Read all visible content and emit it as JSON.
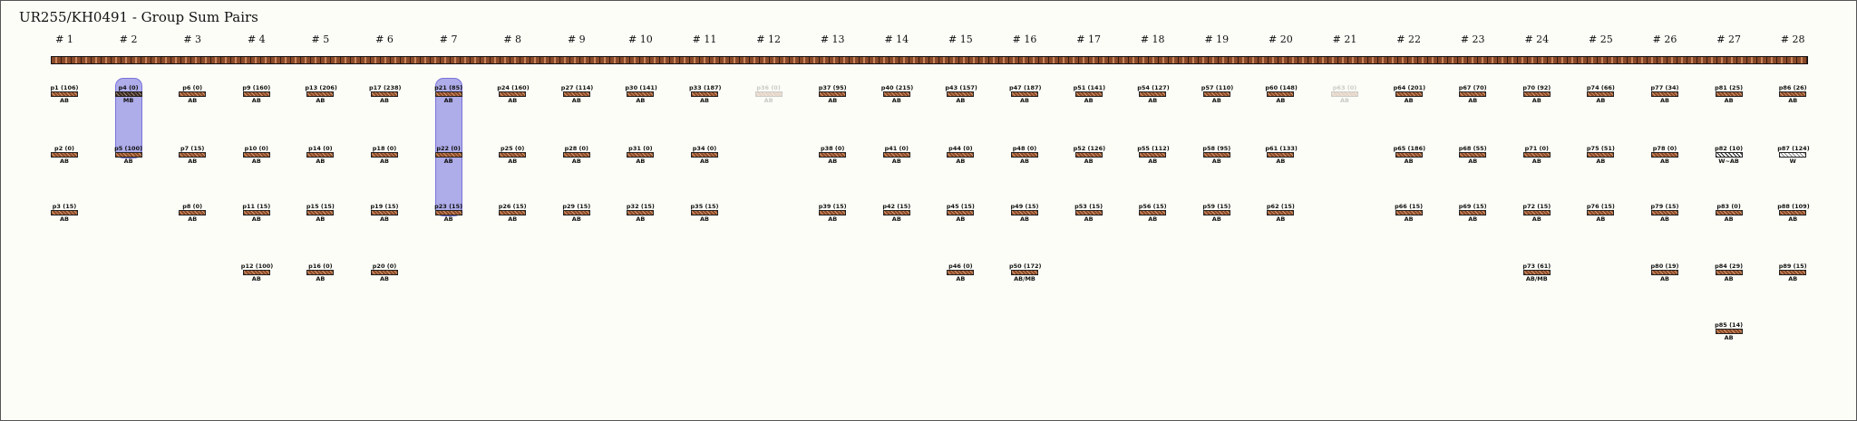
{
  "title": "UR255/KH0491 - Group Sum Pairs",
  "columns": [
    "# 1",
    "# 2",
    "# 3",
    "# 4",
    "# 5",
    "# 6",
    "# 7",
    "# 8",
    "# 9",
    "# 10",
    "# 11",
    "# 12",
    "# 13",
    "# 14",
    "# 15",
    "# 16",
    "# 17",
    "# 18",
    "# 19",
    "# 20",
    "# 21",
    "# 22",
    "# 23",
    "# 24",
    "# 25",
    "# 26",
    "# 27",
    "# 28"
  ],
  "highlights": [
    {
      "column": 2,
      "row_start": 1,
      "row_end": 2,
      "color": "#6e69dc"
    },
    {
      "column": 7,
      "row_start": 1,
      "row_end": 3,
      "color": "#6e69dc"
    }
  ],
  "pieces": [
    {
      "column": 1,
      "row": 1,
      "label": "p1 (106)",
      "sub": "AB",
      "style": "normal"
    },
    {
      "column": 1,
      "row": 2,
      "label": "p2 (0)",
      "sub": "AB",
      "style": "normal"
    },
    {
      "column": 1,
      "row": 3,
      "label": "p3 (15)",
      "sub": "AB",
      "style": "normal"
    },
    {
      "column": 2,
      "row": 1,
      "label": "p4 (0)",
      "sub": "MB",
      "style": "dark"
    },
    {
      "column": 2,
      "row": 2,
      "label": "p5 (100)",
      "sub": "AB",
      "style": "normal"
    },
    {
      "column": 3,
      "row": 1,
      "label": "p6 (0)",
      "sub": "AB",
      "style": "normal"
    },
    {
      "column": 3,
      "row": 2,
      "label": "p7 (15)",
      "sub": "AB",
      "style": "normal"
    },
    {
      "column": 3,
      "row": 3,
      "label": "p8 (0)",
      "sub": "AB",
      "style": "normal"
    },
    {
      "column": 4,
      "row": 1,
      "label": "p9 (160)",
      "sub": "AB",
      "style": "normal"
    },
    {
      "column": 4,
      "row": 2,
      "label": "p10 (0)",
      "sub": "AB",
      "style": "normal"
    },
    {
      "column": 4,
      "row": 3,
      "label": "p11 (15)",
      "sub": "AB",
      "style": "normal"
    },
    {
      "column": 4,
      "row": 4,
      "label": "p12 (100)",
      "sub": "AB",
      "style": "normal"
    },
    {
      "column": 5,
      "row": 1,
      "label": "p13 (206)",
      "sub": "AB",
      "style": "normal"
    },
    {
      "column": 5,
      "row": 2,
      "label": "p14 (0)",
      "sub": "AB",
      "style": "normal"
    },
    {
      "column": 5,
      "row": 3,
      "label": "p15 (15)",
      "sub": "AB",
      "style": "normal"
    },
    {
      "column": 5,
      "row": 4,
      "label": "p16 (0)",
      "sub": "AB",
      "style": "normal"
    },
    {
      "column": 6,
      "row": 1,
      "label": "p17 (238)",
      "sub": "AB",
      "style": "normal"
    },
    {
      "column": 6,
      "row": 2,
      "label": "p18 (0)",
      "sub": "AB",
      "style": "normal"
    },
    {
      "column": 6,
      "row": 3,
      "label": "p19 (15)",
      "sub": "AB",
      "style": "normal"
    },
    {
      "column": 6,
      "row": 4,
      "label": "p20 (0)",
      "sub": "AB",
      "style": "normal"
    },
    {
      "column": 7,
      "row": 1,
      "label": "p21 (85)",
      "sub": "AB",
      "style": "normal"
    },
    {
      "column": 7,
      "row": 2,
      "label": "p22 (0)",
      "sub": "AB",
      "style": "normal"
    },
    {
      "column": 7,
      "row": 3,
      "label": "p23 (15)",
      "sub": "AB",
      "style": "normal"
    },
    {
      "column": 8,
      "row": 1,
      "label": "p24 (160)",
      "sub": "AB",
      "style": "normal"
    },
    {
      "column": 8,
      "row": 2,
      "label": "p25 (0)",
      "sub": "AB",
      "style": "normal"
    },
    {
      "column": 8,
      "row": 3,
      "label": "p26 (15)",
      "sub": "AB",
      "style": "normal"
    },
    {
      "column": 9,
      "row": 1,
      "label": "p27 (114)",
      "sub": "AB",
      "style": "normal"
    },
    {
      "column": 9,
      "row": 2,
      "label": "p28 (0)",
      "sub": "AB",
      "style": "normal"
    },
    {
      "column": 9,
      "row": 3,
      "label": "p29 (15)",
      "sub": "AB",
      "style": "normal"
    },
    {
      "column": 10,
      "row": 1,
      "label": "p30 (141)",
      "sub": "AB",
      "style": "normal"
    },
    {
      "column": 10,
      "row": 2,
      "label": "p31 (0)",
      "sub": "AB",
      "style": "normal"
    },
    {
      "column": 10,
      "row": 3,
      "label": "p32 (15)",
      "sub": "AB",
      "style": "normal"
    },
    {
      "column": 11,
      "row": 1,
      "label": "p33 (187)",
      "sub": "AB",
      "style": "normal"
    },
    {
      "column": 11,
      "row": 2,
      "label": "p34 (0)",
      "sub": "AB",
      "style": "normal"
    },
    {
      "column": 11,
      "row": 3,
      "label": "p35 (15)",
      "sub": "AB",
      "style": "normal"
    },
    {
      "column": 12,
      "row": 1,
      "label": "p36 (0)",
      "sub": "AB",
      "style": "faded"
    },
    {
      "column": 13,
      "row": 1,
      "label": "p37 (95)",
      "sub": "AB",
      "style": "normal"
    },
    {
      "column": 13,
      "row": 2,
      "label": "p38 (0)",
      "sub": "AB",
      "style": "normal"
    },
    {
      "column": 13,
      "row": 3,
      "label": "p39 (15)",
      "sub": "AB",
      "style": "normal"
    },
    {
      "column": 14,
      "row": 1,
      "label": "p40 (215)",
      "sub": "AB",
      "style": "normal"
    },
    {
      "column": 14,
      "row": 2,
      "label": "p41 (0)",
      "sub": "AB",
      "style": "normal"
    },
    {
      "column": 14,
      "row": 3,
      "label": "p42 (15)",
      "sub": "AB",
      "style": "normal"
    },
    {
      "column": 15,
      "row": 1,
      "label": "p43 (157)",
      "sub": "AB",
      "style": "normal"
    },
    {
      "column": 15,
      "row": 2,
      "label": "p44 (0)",
      "sub": "AB",
      "style": "normal"
    },
    {
      "column": 15,
      "row": 3,
      "label": "p45 (15)",
      "sub": "AB",
      "style": "normal"
    },
    {
      "column": 15,
      "row": 4,
      "label": "p46 (0)",
      "sub": "AB",
      "style": "normal"
    },
    {
      "column": 16,
      "row": 1,
      "label": "p47 (187)",
      "sub": "AB",
      "style": "normal"
    },
    {
      "column": 16,
      "row": 2,
      "label": "p48 (0)",
      "sub": "AB",
      "style": "normal"
    },
    {
      "column": 16,
      "row": 3,
      "label": "p49 (15)",
      "sub": "AB",
      "style": "normal"
    },
    {
      "column": 16,
      "row": 4,
      "label": "p50 (172)",
      "sub": "AB/MB",
      "style": "normal"
    },
    {
      "column": 17,
      "row": 1,
      "label": "p51 (141)",
      "sub": "AB",
      "style": "normal"
    },
    {
      "column": 17,
      "row": 2,
      "label": "p52 (126)",
      "sub": "AB",
      "style": "normal"
    },
    {
      "column": 17,
      "row": 3,
      "label": "p53 (15)",
      "sub": "AB",
      "style": "normal"
    },
    {
      "column": 18,
      "row": 1,
      "label": "p54 (127)",
      "sub": "AB",
      "style": "normal"
    },
    {
      "column": 18,
      "row": 2,
      "label": "p55 (112)",
      "sub": "AB",
      "style": "normal"
    },
    {
      "column": 18,
      "row": 3,
      "label": "p56 (15)",
      "sub": "AB",
      "style": "normal"
    },
    {
      "column": 19,
      "row": 1,
      "label": "p57 (110)",
      "sub": "AB",
      "style": "normal"
    },
    {
      "column": 19,
      "row": 2,
      "label": "p58 (95)",
      "sub": "AB",
      "style": "normal"
    },
    {
      "column": 19,
      "row": 3,
      "label": "p59 (15)",
      "sub": "AB",
      "style": "normal"
    },
    {
      "column": 20,
      "row": 1,
      "label": "p60 (148)",
      "sub": "AB",
      "style": "normal"
    },
    {
      "column": 20,
      "row": 2,
      "label": "p61 (133)",
      "sub": "AB",
      "style": "normal"
    },
    {
      "column": 20,
      "row": 3,
      "label": "p62 (15)",
      "sub": "AB",
      "style": "normal"
    },
    {
      "column": 21,
      "row": 1,
      "label": "p63 (0)",
      "sub": "AB",
      "style": "faded"
    },
    {
      "column": 22,
      "row": 1,
      "label": "p64 (201)",
      "sub": "AB",
      "style": "normal"
    },
    {
      "column": 22,
      "row": 2,
      "label": "p65 (186)",
      "sub": "AB",
      "style": "normal"
    },
    {
      "column": 22,
      "row": 3,
      "label": "p66 (15)",
      "sub": "AB",
      "style": "normal"
    },
    {
      "column": 23,
      "row": 1,
      "label": "p67 (70)",
      "sub": "AB",
      "style": "normal"
    },
    {
      "column": 23,
      "row": 2,
      "label": "p68 (55)",
      "sub": "AB",
      "style": "normal"
    },
    {
      "column": 23,
      "row": 3,
      "label": "p69 (15)",
      "sub": "AB",
      "style": "normal"
    },
    {
      "column": 24,
      "row": 1,
      "label": "p70 (92)",
      "sub": "AB",
      "style": "normal"
    },
    {
      "column": 24,
      "row": 2,
      "label": "p71 (0)",
      "sub": "AB",
      "style": "normal"
    },
    {
      "column": 24,
      "row": 3,
      "label": "p72 (15)",
      "sub": "AB",
      "style": "normal"
    },
    {
      "column": 24,
      "row": 4,
      "label": "p73 (61)",
      "sub": "AB/MB",
      "style": "normal"
    },
    {
      "column": 25,
      "row": 1,
      "label": "p74 (66)",
      "sub": "AB",
      "style": "normal"
    },
    {
      "column": 25,
      "row": 2,
      "label": "p75 (51)",
      "sub": "AB",
      "style": "normal"
    },
    {
      "column": 25,
      "row": 3,
      "label": "p76 (15)",
      "sub": "AB",
      "style": "normal"
    },
    {
      "column": 26,
      "row": 1,
      "label": "p77 (34)",
      "sub": "AB",
      "style": "normal"
    },
    {
      "column": 26,
      "row": 2,
      "label": "p78 (0)",
      "sub": "AB",
      "style": "normal"
    },
    {
      "column": 26,
      "row": 3,
      "label": "p79 (15)",
      "sub": "AB",
      "style": "normal"
    },
    {
      "column": 26,
      "row": 4,
      "label": "p80 (19)",
      "sub": "AB",
      "style": "normal"
    },
    {
      "column": 27,
      "row": 1,
      "label": "p81 (25)",
      "sub": "AB",
      "style": "normal"
    },
    {
      "column": 27,
      "row": 2,
      "label": "p82 (10)",
      "sub": "W~AB",
      "style": "hatch"
    },
    {
      "column": 27,
      "row": 3,
      "label": "p83 (0)",
      "sub": "AB",
      "style": "normal"
    },
    {
      "column": 27,
      "row": 4,
      "label": "p84 (29)",
      "sub": "AB",
      "style": "normal"
    },
    {
      "column": 27,
      "row": 5,
      "label": "p85 (14)",
      "sub": "AB",
      "style": "normal"
    },
    {
      "column": 28,
      "row": 1,
      "label": "p86 (26)",
      "sub": "AB",
      "style": "normal"
    },
    {
      "column": 28,
      "row": 2,
      "label": "p87 (124)",
      "sub": "W",
      "style": "hatch-light"
    },
    {
      "column": 28,
      "row": 3,
      "label": "p88 (109)",
      "sub": "AB",
      "style": "normal"
    },
    {
      "column": 28,
      "row": 4,
      "label": "p89 (15)",
      "sub": "AB",
      "style": "normal"
    }
  ]
}
